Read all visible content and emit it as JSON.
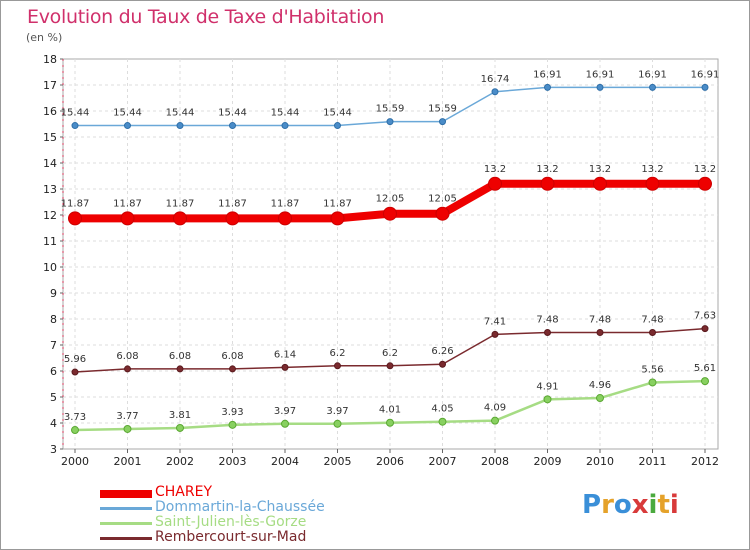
{
  "chart_data": {
    "type": "line",
    "title": "Evolution du Taux de Taxe d'Habitation",
    "unit_label": "(en %)",
    "x": [
      "2000",
      "2001",
      "2002",
      "2003",
      "2004",
      "2005",
      "2006",
      "2007",
      "2008",
      "2009",
      "2010",
      "2011",
      "2012"
    ],
    "ylim": [
      3,
      18
    ],
    "yticks": [
      3,
      4,
      5,
      6,
      7,
      8,
      9,
      10,
      11,
      12,
      13,
      14,
      15,
      16,
      17,
      18
    ],
    "grid": true,
    "legend_position": "bottom-left",
    "series": [
      {
        "name": "CHAREY",
        "color": "#ee0000",
        "values": [
          11.87,
          11.87,
          11.87,
          11.87,
          11.87,
          11.87,
          12.05,
          12.05,
          13.2,
          13.2,
          13.2,
          13.2,
          13.2
        ],
        "labels": [
          "11.87",
          "11.87",
          "11.87",
          "11.87",
          "11.87",
          "11.87",
          "12.05",
          "12.05",
          "13.2",
          "13.2",
          "13.2",
          "13.2",
          "13.2"
        ]
      },
      {
        "name": "Dommartin-la-Chaussée",
        "color": "#6aa8d8",
        "values": [
          15.44,
          15.44,
          15.44,
          15.44,
          15.44,
          15.44,
          15.59,
          15.59,
          16.74,
          16.91,
          16.91,
          16.91,
          16.91
        ],
        "labels": [
          "15.44",
          "15.44",
          "15.44",
          "15.44",
          "15.44",
          "15.44",
          "15.59",
          "15.59",
          "16.74",
          "16.91",
          "16.91",
          "16.91",
          "16.91"
        ]
      },
      {
        "name": "Saint-Julien-lès-Gorze",
        "color": "#a6dc84",
        "values": [
          3.73,
          3.77,
          3.81,
          3.93,
          3.97,
          3.97,
          4.01,
          4.05,
          4.09,
          4.91,
          4.96,
          5.56,
          5.61
        ],
        "labels": [
          "3.73",
          "3.77",
          "3.81",
          "3.93",
          "3.97",
          "3.97",
          "4.01",
          "4.05",
          "4.09",
          "4.91",
          "4.96",
          "5.56",
          "5.61"
        ]
      },
      {
        "name": "Rembercourt-sur-Mad",
        "color": "#7a2a2e",
        "values": [
          5.96,
          6.08,
          6.08,
          6.08,
          6.14,
          6.2,
          6.2,
          6.26,
          7.41,
          7.48,
          7.48,
          7.48,
          7.63
        ],
        "labels": [
          "5.96",
          "6.08",
          "6.08",
          "6.08",
          "6.14",
          "6.2",
          "6.2",
          "6.26",
          "7.41",
          "7.48",
          "7.48",
          "7.48",
          "7.63"
        ]
      }
    ]
  },
  "logo_text": "Proxiti"
}
